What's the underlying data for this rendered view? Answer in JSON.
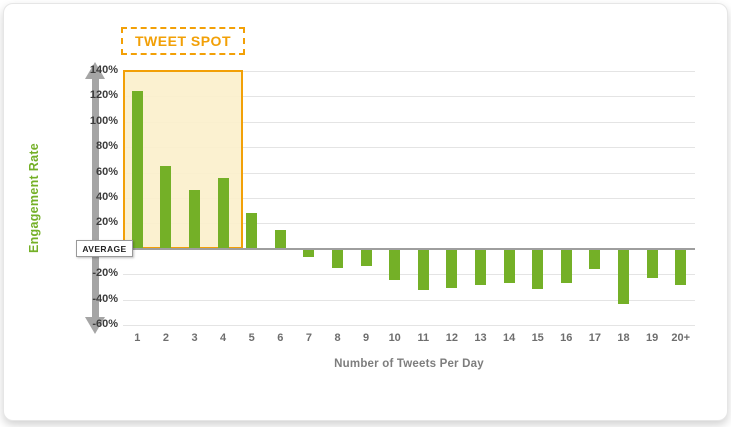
{
  "chart_data": {
    "type": "bar",
    "title": "TWEET SPOT",
    "xlabel": "Number of Tweets Per Day",
    "ylabel": "Engagement Rate",
    "zero_label": "AVERAGE",
    "categories": [
      "1",
      "2",
      "3",
      "4",
      "5",
      "6",
      "7",
      "8",
      "9",
      "10",
      "11",
      "12",
      "13",
      "14",
      "15",
      "16",
      "17",
      "18",
      "19",
      "20+"
    ],
    "values": [
      124,
      65,
      46,
      56,
      28,
      15,
      -6,
      -14,
      -13,
      -24,
      -32,
      -30,
      -28,
      -26,
      -31,
      -26,
      -15,
      -43,
      -22,
      -28
    ],
    "ylim": [
      -60,
      140
    ],
    "y_ticks": [
      {
        "value": 140,
        "label": "140%"
      },
      {
        "value": 120,
        "label": "120%"
      },
      {
        "value": 100,
        "label": "100%"
      },
      {
        "value": 80,
        "label": "80%"
      },
      {
        "value": 60,
        "label": "60%"
      },
      {
        "value": 40,
        "label": "40%"
      },
      {
        "value": 20,
        "label": "20%"
      },
      {
        "value": 0,
        "label": "AVERAGE"
      },
      {
        "value": -20,
        "label": "-20%"
      },
      {
        "value": -40,
        "label": "-40%"
      },
      {
        "value": -60,
        "label": "-60%"
      }
    ],
    "grid": true,
    "legend": "none",
    "highlight": {
      "label": "TWEET SPOT",
      "from_category": "1",
      "to_category": "4",
      "covers": "above-average region of bars 1 through 4"
    },
    "colors": {
      "bar_green": "#74b027",
      "accent_orange": "#f2a007",
      "highlight_fill": "rgba(251,240,203,0.9)",
      "axis_gray": "#a5a5a5",
      "grid_gray": "#e4e4e4",
      "zero_line": "#9e9e9e",
      "label_dark": "#3c3c3c",
      "label_gray": "#6e6e6e",
      "title_gray": "#7d7d7d"
    }
  }
}
